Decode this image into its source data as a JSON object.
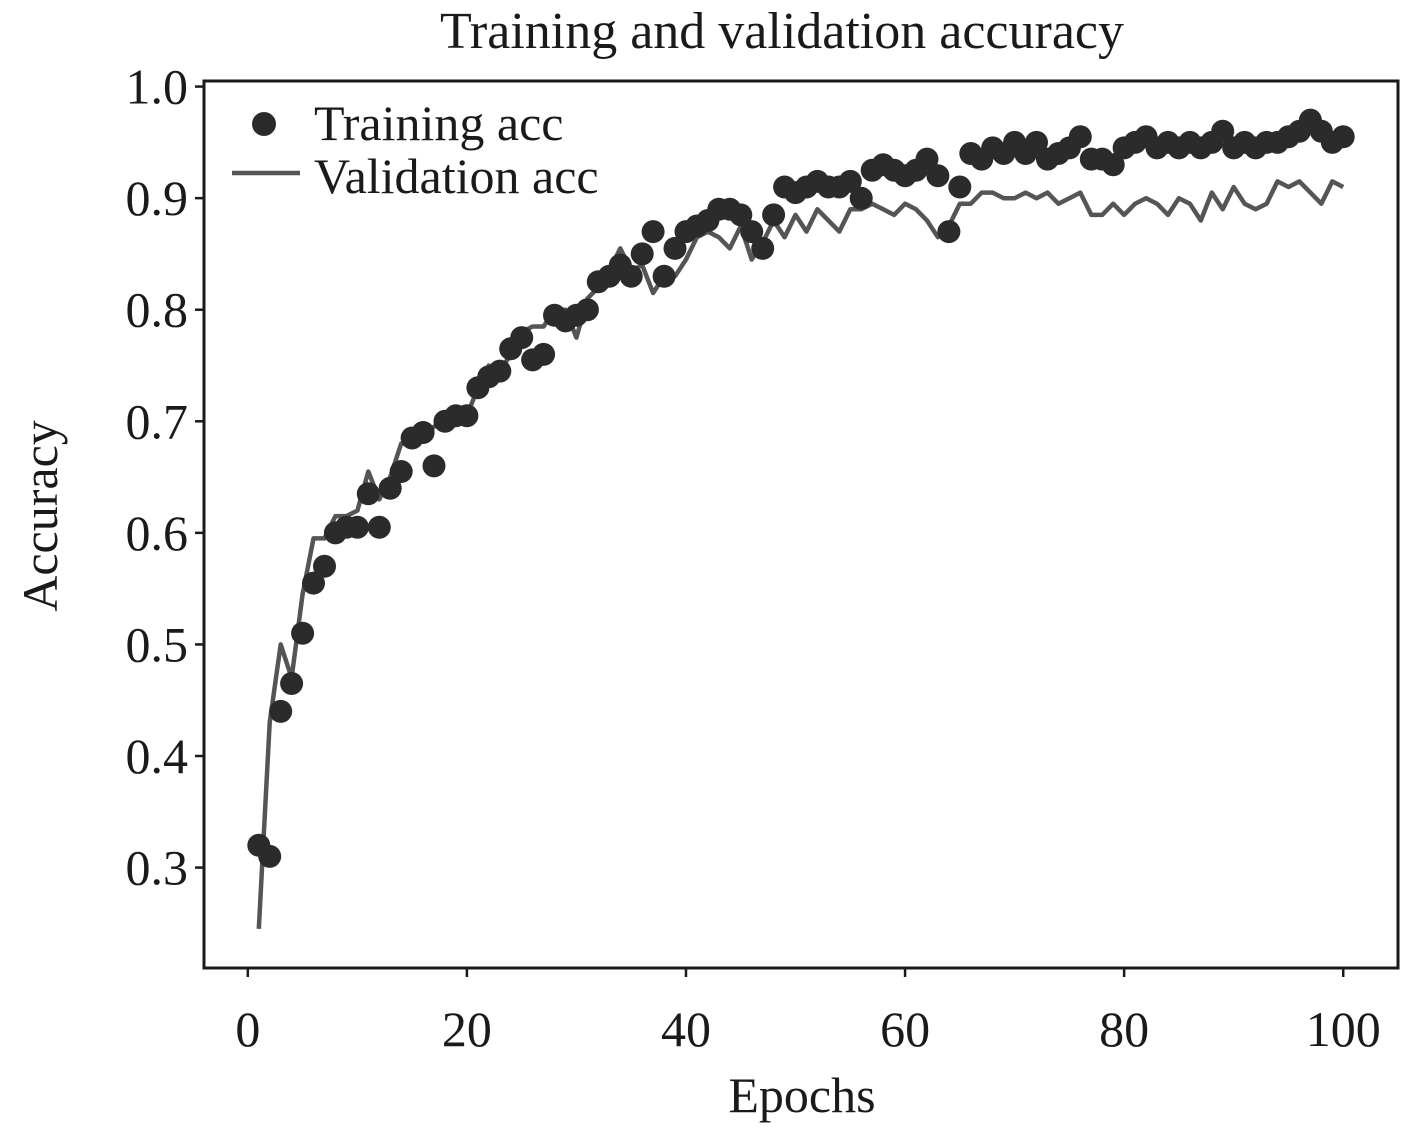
{
  "chart_data": {
    "type": "scatter",
    "title": "Training and validation accuracy",
    "xlabel": "Epochs",
    "ylabel": "Accuracy",
    "xlim": [
      -4,
      105
    ],
    "ylim": [
      0.21,
      1.005
    ],
    "xticks": [
      0,
      20,
      40,
      60,
      80,
      100
    ],
    "yticks": [
      0.3,
      0.4,
      0.5,
      0.6,
      0.7,
      0.8,
      0.9,
      1.0
    ],
    "xtick_labels": [
      "0",
      "20",
      "40",
      "60",
      "80",
      "100"
    ],
    "ytick_labels": [
      "0.3",
      "0.4",
      "0.5",
      "0.6",
      "0.7",
      "0.8",
      "0.9",
      "1.0"
    ],
    "grid": false,
    "legend_position": "top-left",
    "series": [
      {
        "name": "Training acc",
        "style": "points",
        "color": "#2b2b2b",
        "x": [
          1,
          2,
          3,
          4,
          5,
          6,
          7,
          8,
          9,
          10,
          11,
          12,
          13,
          14,
          15,
          16,
          17,
          18,
          19,
          20,
          21,
          22,
          23,
          24,
          25,
          26,
          27,
          28,
          29,
          30,
          31,
          32,
          33,
          34,
          35,
          36,
          37,
          38,
          39,
          40,
          41,
          42,
          43,
          44,
          45,
          46,
          47,
          48,
          49,
          50,
          51,
          52,
          53,
          54,
          55,
          56,
          57,
          58,
          59,
          60,
          61,
          62,
          63,
          64,
          65,
          66,
          67,
          68,
          69,
          70,
          71,
          72,
          73,
          74,
          75,
          76,
          77,
          78,
          79,
          80,
          81,
          82,
          83,
          84,
          85,
          86,
          87,
          88,
          89,
          90,
          91,
          92,
          93,
          94,
          95,
          96,
          97,
          98,
          99,
          100
        ],
        "values": [
          0.32,
          0.31,
          0.44,
          0.465,
          0.51,
          0.555,
          0.57,
          0.6,
          0.605,
          0.605,
          0.635,
          0.605,
          0.64,
          0.655,
          0.685,
          0.69,
          0.66,
          0.7,
          0.705,
          0.705,
          0.73,
          0.74,
          0.745,
          0.765,
          0.775,
          0.755,
          0.76,
          0.795,
          0.79,
          0.795,
          0.8,
          0.825,
          0.83,
          0.84,
          0.83,
          0.85,
          0.87,
          0.83,
          0.855,
          0.87,
          0.875,
          0.88,
          0.89,
          0.89,
          0.885,
          0.87,
          0.855,
          0.885,
          0.91,
          0.905,
          0.91,
          0.915,
          0.91,
          0.91,
          0.915,
          0.9,
          0.925,
          0.93,
          0.925,
          0.92,
          0.925,
          0.935,
          0.92,
          0.87,
          0.91,
          0.94,
          0.935,
          0.945,
          0.94,
          0.95,
          0.94,
          0.95,
          0.935,
          0.94,
          0.945,
          0.955,
          0.935,
          0.935,
          0.93,
          0.945,
          0.95,
          0.955,
          0.945,
          0.95,
          0.945,
          0.95,
          0.945,
          0.95,
          0.96,
          0.945,
          0.95,
          0.945,
          0.95,
          0.95,
          0.955,
          0.96,
          0.97,
          0.96,
          0.95,
          0.955
        ]
      },
      {
        "name": "Validation acc",
        "style": "line",
        "color": "#555555",
        "x": [
          1,
          2,
          3,
          4,
          5,
          6,
          7,
          8,
          9,
          10,
          11,
          12,
          13,
          14,
          15,
          16,
          17,
          18,
          19,
          20,
          21,
          22,
          23,
          24,
          25,
          26,
          27,
          28,
          29,
          30,
          31,
          32,
          33,
          34,
          35,
          36,
          37,
          38,
          39,
          40,
          41,
          42,
          43,
          44,
          45,
          46,
          47,
          48,
          49,
          50,
          51,
          52,
          53,
          54,
          55,
          56,
          57,
          58,
          59,
          60,
          61,
          62,
          63,
          64,
          65,
          66,
          67,
          68,
          69,
          70,
          71,
          72,
          73,
          74,
          75,
          76,
          77,
          78,
          79,
          80,
          81,
          82,
          83,
          84,
          85,
          86,
          87,
          88,
          89,
          90,
          91,
          92,
          93,
          94,
          95,
          96,
          97,
          98,
          99,
          100
        ],
        "values": [
          0.245,
          0.43,
          0.5,
          0.47,
          0.545,
          0.595,
          0.595,
          0.615,
          0.615,
          0.62,
          0.655,
          0.63,
          0.65,
          0.68,
          0.68,
          0.69,
          0.695,
          0.705,
          0.71,
          0.705,
          0.73,
          0.75,
          0.745,
          0.76,
          0.78,
          0.785,
          0.785,
          0.8,
          0.8,
          0.775,
          0.81,
          0.82,
          0.835,
          0.855,
          0.835,
          0.84,
          0.815,
          0.83,
          0.83,
          0.845,
          0.865,
          0.87,
          0.865,
          0.855,
          0.875,
          0.845,
          0.86,
          0.88,
          0.865,
          0.885,
          0.87,
          0.89,
          0.88,
          0.87,
          0.89,
          0.89,
          0.895,
          0.89,
          0.885,
          0.895,
          0.89,
          0.88,
          0.865,
          0.875,
          0.895,
          0.895,
          0.905,
          0.905,
          0.9,
          0.9,
          0.905,
          0.9,
          0.905,
          0.895,
          0.9,
          0.905,
          0.885,
          0.885,
          0.895,
          0.885,
          0.895,
          0.9,
          0.895,
          0.885,
          0.9,
          0.895,
          0.88,
          0.905,
          0.89,
          0.91,
          0.895,
          0.89,
          0.895,
          0.915,
          0.91,
          0.915,
          0.905,
          0.895,
          0.915,
          0.91
        ]
      }
    ]
  }
}
